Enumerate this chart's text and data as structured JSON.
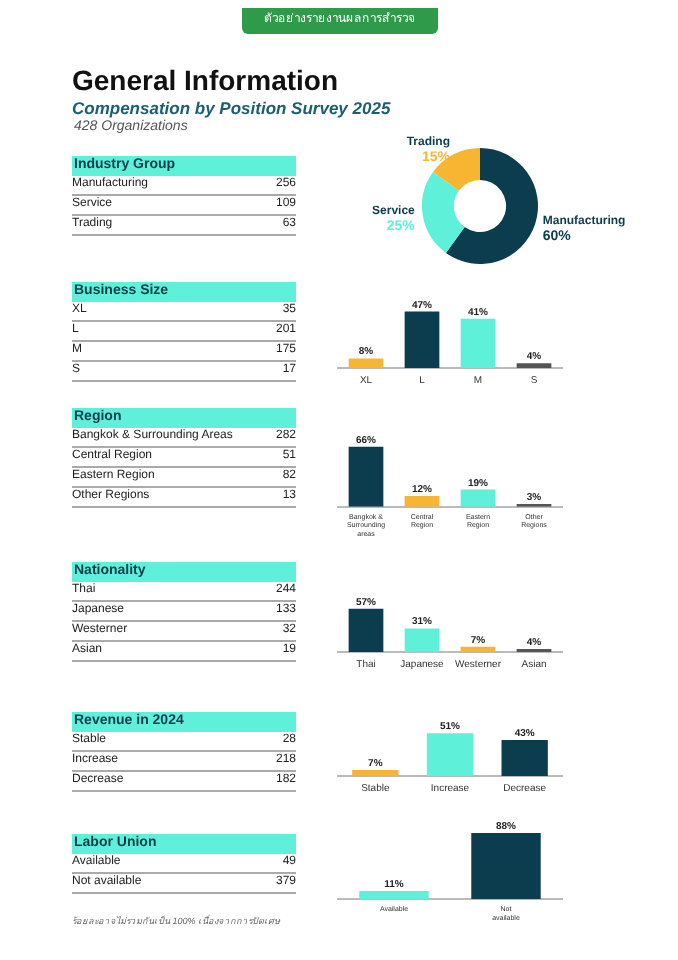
{
  "chart_data": [
    {
      "type": "other",
      "title": "Industry Group",
      "annotations": [
        "ตัวอย่างรายงานผลการสำรวจ",
        "General Information",
        "Compensation by Position Survey 2025",
        "428 Organizations"
      ],
      "categories": [
        "Manufacturing",
        "Service",
        "Trading"
      ],
      "values": [
        256,
        109,
        63
      ],
      "data_labels": true
    },
    {
      "type": "donut",
      "categories": [
        "Manufacturing",
        "Service",
        "Trading"
      ],
      "values": [
        60,
        25,
        15
      ],
      "value_labels": [
        "60%",
        "25%",
        "15%"
      ],
      "colors": [
        "#0b3d4f",
        "#5ef0d8",
        "#f7b531"
      ]
    },
    {
      "type": "other",
      "title": "Business Size",
      "categories": [
        "XL",
        "L",
        "M",
        "S"
      ],
      "values": [
        35,
        201,
        175,
        17
      ],
      "data_labels": true
    },
    {
      "type": "bar",
      "categories": [
        "XL",
        "L",
        "M",
        "S"
      ],
      "values": [
        8,
        47,
        41,
        4
      ],
      "value_labels": [
        "8%",
        "47%",
        "41%",
        "4%"
      ],
      "colors": [
        "#f7b531",
        "#0b3d4f",
        "#5ef0d8",
        "#555555"
      ],
      "tick_labels": "x"
    },
    {
      "type": "other",
      "title": "Region",
      "categories": [
        "Bangkok & Surrounding Areas",
        "Central Region",
        "Eastern Region",
        "Other Regions"
      ],
      "values": [
        282,
        51,
        82,
        13
      ],
      "data_labels": true
    },
    {
      "type": "bar",
      "categories": [
        "Bangkok & Surrounding areas",
        "Central Region",
        "Eastern Region",
        "Other Regions"
      ],
      "values": [
        66,
        12,
        19,
        3
      ],
      "value_labels": [
        "66%",
        "12%",
        "19%",
        "3%"
      ],
      "colors": [
        "#0b3d4f",
        "#f7b531",
        "#5ef0d8",
        "#555555"
      ],
      "tick_labels": "x"
    },
    {
      "type": "other",
      "title": "Nationality",
      "categories": [
        "Thai",
        "Japanese",
        "Westerner",
        "Asian"
      ],
      "values": [
        244,
        133,
        32,
        19
      ],
      "data_labels": true
    },
    {
      "type": "bar",
      "categories": [
        "Thai",
        "Japanese",
        "Westerner",
        "Asian"
      ],
      "values": [
        57,
        31,
        7,
        4
      ],
      "value_labels": [
        "57%",
        "31%",
        "7%",
        "4%"
      ],
      "colors": [
        "#0b3d4f",
        "#5ef0d8",
        "#f7b531",
        "#555555"
      ],
      "tick_labels": "x"
    },
    {
      "type": "other",
      "title": "Revenue in 2024",
      "categories": [
        "Stable",
        "Increase",
        "Decrease"
      ],
      "values": [
        28,
        218,
        182
      ],
      "data_labels": true
    },
    {
      "type": "bar",
      "categories": [
        "Stable",
        "Increase",
        "Decrease"
      ],
      "values": [
        7,
        51,
        43
      ],
      "value_labels": [
        "7%",
        "51%",
        "43%"
      ],
      "colors": [
        "#f7b531",
        "#5ef0d8",
        "#0b3d4f"
      ],
      "tick_labels": "x"
    },
    {
      "type": "other",
      "title": "Labor Union",
      "annotations": [
        "ร้อยละอาจไม่รวมกันเป็น 100% เนื่องจากการปัดเศษ"
      ],
      "categories": [
        "Available",
        "Not available"
      ],
      "values": [
        49,
        379
      ],
      "data_labels": true
    },
    {
      "type": "bar",
      "categories": [
        "Available",
        "Not available"
      ],
      "values": [
        11,
        88
      ],
      "value_labels": [
        "11%",
        "88%"
      ],
      "colors": [
        "#5ef0d8",
        "#0b3d4f"
      ],
      "tick_labels": "x"
    }
  ]
}
